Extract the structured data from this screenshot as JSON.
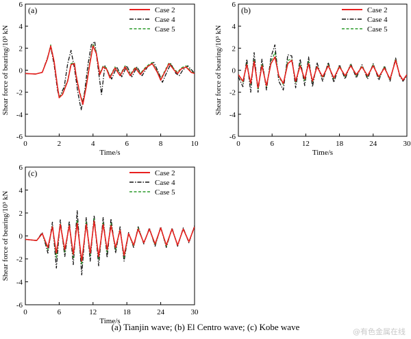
{
  "figure": {
    "caption": "(a) Tianjin wave; (b) El Centro wave; (c) Kobe wave",
    "watermark": "@有色金属在线"
  },
  "colors": {
    "Case 2": "#e8201f",
    "Case 4": "#111111",
    "Case 5": "#2a9a2a"
  },
  "chart_data": [
    {
      "type": "line",
      "panel_label": "(a)",
      "xlabel": "Time/s",
      "ylabel": "Shear force of bearing/10³ kN",
      "xlim": [
        0,
        10
      ],
      "ylim": [
        -6,
        6
      ],
      "xticks": [
        0,
        2,
        4,
        6,
        8,
        10
      ],
      "yticks": [
        -6,
        -4,
        -2,
        0,
        2,
        4,
        6
      ],
      "legend": "top-right",
      "series": [
        {
          "name": "Case 2",
          "style": "solid",
          "x": [
            0,
            0.6,
            1.0,
            1.3,
            1.5,
            1.7,
            1.9,
            2.0,
            2.2,
            2.5,
            2.7,
            2.9,
            3.0,
            3.2,
            3.4,
            3.6,
            3.8,
            4.0,
            4.2,
            4.4,
            4.6,
            4.8,
            5.0,
            5.3,
            5.6,
            5.9,
            6.2,
            6.5,
            6.8,
            7.0,
            7.2,
            7.5,
            7.8,
            8.0,
            8.2,
            8.5,
            8.8,
            9.0,
            9.2,
            9.5,
            9.8,
            10
          ],
          "y": [
            -0.3,
            -0.35,
            -0.2,
            1.0,
            2.2,
            0.8,
            -1.5,
            -2.5,
            -2.2,
            -1.0,
            0.5,
            0.6,
            -0.5,
            -2.0,
            -3.1,
            -1.5,
            0.5,
            2.2,
            1.5,
            -0.4,
            0.3,
            0.1,
            -0.7,
            0.2,
            -0.5,
            0.3,
            -0.5,
            0.2,
            -0.4,
            0.0,
            0.3,
            0.6,
            -0.2,
            -0.9,
            -0.3,
            0.6,
            0.0,
            -0.3,
            0.1,
            0.3,
            -0.2,
            -0.3
          ]
        },
        {
          "name": "Case 4",
          "style": "dashdot",
          "x": [
            0,
            0.6,
            1.0,
            1.3,
            1.5,
            1.7,
            1.9,
            2.0,
            2.3,
            2.5,
            2.7,
            2.9,
            3.1,
            3.3,
            3.5,
            3.7,
            3.9,
            4.1,
            4.3,
            4.5,
            4.7,
            4.9,
            5.1,
            5.4,
            5.7,
            6.0,
            6.3,
            6.6,
            6.9,
            7.1,
            7.3,
            7.6,
            7.9,
            8.1,
            8.3,
            8.6,
            8.9,
            9.1,
            9.3,
            9.6,
            9.9,
            10
          ],
          "y": [
            -0.3,
            -0.35,
            -0.2,
            1.1,
            2.1,
            0.5,
            -1.8,
            -2.5,
            -1.5,
            0.6,
            1.8,
            0.2,
            -2.0,
            -3.6,
            -2.0,
            0.5,
            2.3,
            2.6,
            0.2,
            -2.2,
            0.4,
            -0.2,
            -0.8,
            0.3,
            -0.6,
            0.4,
            -0.6,
            0.3,
            -0.5,
            0.0,
            0.5,
            0.7,
            -0.3,
            -1.1,
            -0.4,
            0.6,
            -0.3,
            -0.5,
            0.0,
            0.4,
            -0.1,
            -0.3
          ]
        },
        {
          "name": "Case 5",
          "style": "dashed",
          "x": [
            0,
            0.6,
            1.0,
            1.3,
            1.5,
            1.7,
            1.9,
            2.0,
            2.2,
            2.5,
            2.7,
            2.9,
            3.0,
            3.2,
            3.4,
            3.6,
            3.8,
            4.0,
            4.2,
            4.4,
            4.6,
            4.8,
            5.0,
            5.3,
            5.6,
            5.9,
            6.2,
            6.5,
            6.8,
            7.0,
            7.2,
            7.5,
            7.8,
            8.0,
            8.2,
            8.5,
            8.8,
            9.0,
            9.2,
            9.5,
            9.8,
            10
          ],
          "y": [
            -0.3,
            -0.35,
            -0.2,
            1.0,
            2.3,
            0.8,
            -1.4,
            -2.4,
            -2.1,
            -0.9,
            0.6,
            0.7,
            -0.4,
            -1.9,
            -3.0,
            -1.3,
            0.7,
            2.4,
            1.6,
            -0.3,
            0.4,
            0.2,
            -0.6,
            0.3,
            -0.4,
            0.4,
            -0.4,
            0.3,
            -0.3,
            0.1,
            0.4,
            0.7,
            -0.1,
            -0.8,
            -0.2,
            0.7,
            0.1,
            -0.2,
            0.2,
            0.4,
            -0.1,
            -0.3
          ]
        }
      ]
    },
    {
      "type": "line",
      "panel_label": "(b)",
      "xlabel": "Time/s",
      "ylabel": "Shear force of bearing/10³ kN",
      "xlim": [
        0,
        30
      ],
      "ylim": [
        -6,
        6
      ],
      "xticks": [
        0,
        6,
        12,
        18,
        24,
        30
      ],
      "yticks": [
        -6,
        -4,
        -2,
        0,
        2,
        4,
        6
      ],
      "legend": "top-right",
      "series": [
        {
          "name": "Case 2",
          "style": "solid",
          "x": [
            0,
            0.8,
            1.5,
            2.2,
            2.8,
            3.5,
            4.2,
            5.0,
            5.8,
            6.5,
            7.2,
            8.0,
            8.8,
            9.5,
            10.2,
            11.0,
            11.8,
            12.5,
            13.2,
            14.0,
            15.0,
            16.0,
            17.0,
            18.0,
            19.0,
            20.0,
            21.0,
            22.0,
            23.0,
            24.0,
            25.0,
            26.0,
            27.0,
            28.0,
            28.7,
            29.3,
            30
          ],
          "y": [
            -0.4,
            -1.0,
            0.5,
            -1.2,
            0.8,
            -1.6,
            0.4,
            -1.4,
            0.6,
            1.2,
            -0.5,
            -1.2,
            0.6,
            0.9,
            -1.0,
            0.4,
            -0.8,
            0.6,
            -1.0,
            0.3,
            -0.6,
            0.4,
            -0.7,
            0.3,
            -0.5,
            0.4,
            -0.4,
            0.3,
            -0.5,
            0.4,
            -0.6,
            0.2,
            -0.8,
            0.9,
            -0.4,
            -0.9,
            -0.4
          ]
        },
        {
          "name": "Case 4",
          "style": "dashdot",
          "x": [
            0,
            0.8,
            1.5,
            2.2,
            2.8,
            3.5,
            4.2,
            5.0,
            5.8,
            6.5,
            7.2,
            8.0,
            8.8,
            9.5,
            10.2,
            11.0,
            11.8,
            12.5,
            13.2,
            14.0,
            15.0,
            16.0,
            17.0,
            18.0,
            19.0,
            20.0,
            21.0,
            22.0,
            23.0,
            24.0,
            25.0,
            26.0,
            27.0,
            28.0,
            28.7,
            29.3,
            30
          ],
          "y": [
            -0.6,
            -1.5,
            1.0,
            -2.0,
            1.6,
            -2.0,
            1.0,
            -1.8,
            1.2,
            2.3,
            -1.0,
            -1.8,
            1.4,
            1.3,
            -1.6,
            1.0,
            -1.4,
            1.2,
            -1.5,
            0.7,
            -1.0,
            0.7,
            -1.1,
            0.5,
            -0.8,
            0.6,
            -0.7,
            0.5,
            -0.8,
            0.6,
            -0.9,
            0.4,
            -1.0,
            1.1,
            -0.5,
            -1.0,
            -0.5
          ]
        },
        {
          "name": "Case 5",
          "style": "dashed",
          "x": [
            0,
            0.8,
            1.5,
            2.2,
            2.8,
            3.5,
            4.2,
            5.0,
            5.8,
            6.5,
            7.2,
            8.0,
            8.8,
            9.5,
            10.2,
            11.0,
            11.8,
            12.5,
            13.2,
            14.0,
            15.0,
            16.0,
            17.0,
            18.0,
            19.0,
            20.0,
            21.0,
            22.0,
            23.0,
            24.0,
            25.0,
            26.0,
            27.0,
            28.0,
            28.7,
            29.3,
            30
          ],
          "y": [
            -0.4,
            -1.1,
            0.6,
            -1.3,
            1.0,
            -1.8,
            0.6,
            -1.5,
            0.8,
            1.6,
            -0.6,
            -1.3,
            0.9,
            1.0,
            -1.1,
            0.6,
            -1.0,
            0.8,
            -1.1,
            0.4,
            -0.7,
            0.5,
            -0.8,
            0.4,
            -0.6,
            0.5,
            -0.5,
            0.4,
            -0.6,
            0.5,
            -0.7,
            0.3,
            -0.9,
            1.0,
            -0.4,
            -0.9,
            -0.4
          ]
        }
      ]
    },
    {
      "type": "line",
      "panel_label": "(c)",
      "xlabel": "Time/s",
      "ylabel": "Shear force of bearing/10³ kN",
      "xlim": [
        0,
        30
      ],
      "ylim": [
        -6,
        6
      ],
      "xticks": [
        0,
        6,
        12,
        18,
        24,
        30
      ],
      "yticks": [
        -6,
        -4,
        -2,
        0,
        2,
        4,
        6
      ],
      "legend": "top-right",
      "series": [
        {
          "name": "Case 2",
          "style": "solid",
          "x": [
            0,
            2.0,
            3.0,
            4.0,
            4.8,
            5.5,
            6.2,
            7.0,
            7.8,
            8.5,
            9.2,
            10.0,
            10.8,
            11.5,
            12.2,
            13.0,
            13.8,
            14.5,
            15.2,
            16.0,
            16.8,
            17.5,
            18.3,
            19.2,
            20.0,
            21.0,
            22.0,
            23.0,
            24.0,
            25.0,
            26.0,
            27.0,
            28.0,
            29.0,
            30
          ],
          "y": [
            -0.3,
            -0.4,
            0.2,
            -1.0,
            0.8,
            -1.5,
            1.0,
            -1.2,
            0.9,
            -1.6,
            1.1,
            -2.2,
            1.0,
            -1.5,
            1.3,
            -1.8,
            1.0,
            -1.2,
            0.9,
            -1.0,
            0.5,
            -1.7,
            0.2,
            -0.8,
            0.6,
            -0.6,
            0.6,
            -0.7,
            0.7,
            -0.8,
            0.6,
            -0.8,
            0.6,
            -0.5,
            0.8
          ]
        },
        {
          "name": "Case 4",
          "style": "dashdot",
          "x": [
            0,
            2.0,
            3.0,
            4.0,
            4.8,
            5.5,
            6.2,
            7.0,
            7.8,
            8.5,
            9.2,
            10.0,
            10.8,
            11.5,
            12.2,
            13.0,
            13.8,
            14.5,
            15.2,
            16.0,
            16.8,
            17.5,
            18.3,
            19.2,
            20.0,
            21.0,
            22.0,
            23.0,
            24.0,
            25.0,
            26.0,
            27.0,
            28.0,
            29.0,
            30
          ],
          "y": [
            -0.3,
            -0.4,
            0.3,
            -1.5,
            1.2,
            -2.8,
            1.4,
            -1.8,
            1.3,
            -2.5,
            2.2,
            -3.4,
            1.6,
            -2.2,
            1.8,
            -2.6,
            1.6,
            -1.9,
            1.5,
            -1.5,
            0.8,
            -2.2,
            0.3,
            -1.0,
            0.8,
            -0.7,
            0.7,
            -0.9,
            0.8,
            -1.0,
            0.7,
            -0.9,
            0.7,
            -0.6,
            0.9
          ]
        },
        {
          "name": "Case 5",
          "style": "dashed",
          "x": [
            0,
            2.0,
            3.0,
            4.0,
            4.8,
            5.5,
            6.2,
            7.0,
            7.8,
            8.5,
            9.2,
            10.0,
            10.8,
            11.5,
            12.2,
            13.0,
            13.8,
            14.5,
            15.2,
            16.0,
            16.8,
            17.5,
            18.3,
            19.2,
            20.0,
            21.0,
            22.0,
            23.0,
            24.0,
            25.0,
            26.0,
            27.0,
            28.0,
            29.0,
            30
          ],
          "y": [
            -0.3,
            -0.4,
            0.2,
            -1.2,
            0.9,
            -1.9,
            1.1,
            -1.4,
            1.0,
            -1.9,
            1.4,
            -2.5,
            1.2,
            -1.7,
            1.5,
            -2.0,
            1.2,
            -1.4,
            1.1,
            -1.2,
            0.6,
            -1.9,
            0.2,
            -0.9,
            0.7,
            -0.6,
            0.6,
            -0.8,
            0.7,
            -0.9,
            0.6,
            -0.8,
            0.6,
            -0.5,
            0.8
          ]
        }
      ]
    }
  ]
}
